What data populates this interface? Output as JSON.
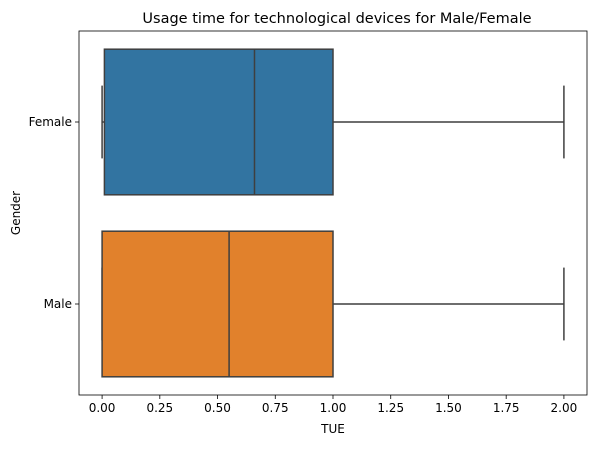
{
  "chart_data": {
    "type": "box",
    "orientation": "horizontal",
    "title": "Usage time for technological devices for Male/Female",
    "xlabel": "TUE",
    "ylabel": "Gender",
    "xlim": [
      -0.1,
      2.1
    ],
    "xticks": [
      0.0,
      0.25,
      0.5,
      0.75,
      1.0,
      1.25,
      1.5,
      1.75,
      2.0
    ],
    "xtick_labels": [
      "0.00",
      "0.25",
      "0.50",
      "0.75",
      "1.00",
      "1.25",
      "1.50",
      "1.75",
      "2.00"
    ],
    "categories": [
      "Female",
      "Male"
    ],
    "boxes": [
      {
        "category": "Female",
        "color": "#3274a1",
        "whisker_low": 0.0,
        "q1": 0.01,
        "median": 0.66,
        "q3": 1.0,
        "whisker_high": 2.0
      },
      {
        "category": "Male",
        "color": "#e1812c",
        "whisker_low": 0.0,
        "q1": 0.0,
        "median": 0.55,
        "q3": 1.0,
        "whisker_high": 2.0
      }
    ],
    "grid": false
  }
}
